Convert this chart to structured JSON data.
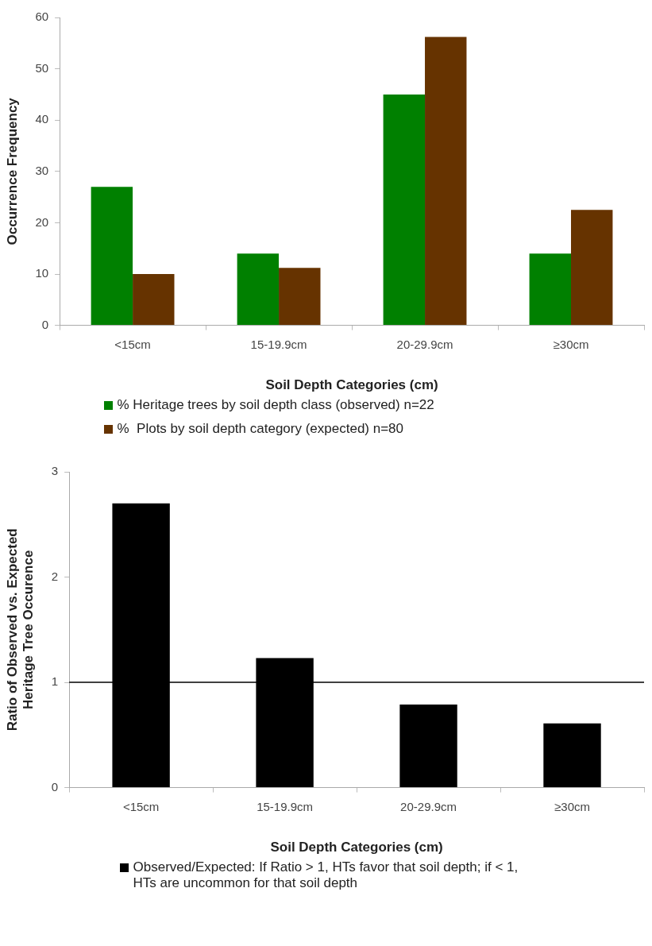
{
  "chart_data": [
    {
      "type": "bar",
      "xlabel": "Soil Depth Categories (cm)",
      "ylabel": "Occurrence Frequency",
      "categories": [
        "<15cm",
        "15-19.9cm",
        "20-29.9cm",
        "≥30cm"
      ],
      "series": [
        {
          "name": "% Heritage trees by soil depth class (observed) n=22",
          "color": "#008000",
          "values": [
            27,
            14,
            45,
            14
          ]
        },
        {
          "name": "%  Plots by soil depth category (expected) n=80",
          "color": "#663300",
          "values": [
            10,
            11.2,
            56.2,
            22.5
          ]
        }
      ],
      "ylim": [
        0,
        60
      ],
      "yticks": [
        0,
        10,
        20,
        30,
        40,
        50,
        60
      ],
      "grid": false,
      "legend": "bottom"
    },
    {
      "type": "bar",
      "xlabel": "Soil Depth Categories (cm)",
      "ylabel": "Ratio of Observed vs. Expected Heritage Tree Occurence",
      "categories": [
        "<15cm",
        "15-19.9cm",
        "20-29.9cm",
        "≥30cm"
      ],
      "series": [
        {
          "name": "Observed/Expected: If Ratio > 1, HTs favor that soil depth; if < 1, HTs are uncommon for that soil depth",
          "color": "#000000",
          "values": [
            2.7,
            1.23,
            0.79,
            0.61
          ]
        }
      ],
      "ylim": [
        0,
        3
      ],
      "yticks": [
        0,
        1,
        2,
        3
      ],
      "grid": false,
      "legend": "bottom",
      "ref_lines": [
        {
          "axis": "y",
          "value": 1,
          "color": "#000000"
        }
      ]
    }
  ]
}
